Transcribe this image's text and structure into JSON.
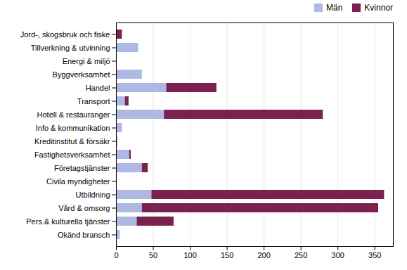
{
  "chart_data": {
    "type": "bar",
    "orientation": "horizontal",
    "stacked": true,
    "categories": [
      "Jord-, skogsbruk och fiske",
      "Tillverkning & utvinning",
      "Energi & miljö",
      "Byggverksamhet",
      "Handel",
      "Transport",
      "Hotell & restauranger",
      "Info & kommunikation",
      "Kreditinstitut & försäkr",
      "Fastighetsverksamhet",
      "Företagstjänster",
      "Civila myndigheter",
      "Utbildning",
      "Vård & omsorg",
      "Pers.& kulturella tjänster",
      "Okänd bransch"
    ],
    "series": [
      {
        "name": "Män",
        "color": "#adb9e3",
        "values": [
          0,
          30,
          0,
          35,
          68,
          12,
          65,
          8,
          2,
          18,
          35,
          0,
          48,
          35,
          28,
          5
        ]
      },
      {
        "name": "Kvinnor",
        "color": "#7b2150",
        "values": [
          8,
          0,
          0,
          0,
          68,
          5,
          215,
          0,
          0,
          2,
          8,
          0,
          315,
          320,
          50,
          0
        ]
      }
    ],
    "xlim": [
      0,
      375
    ],
    "xticks": [
      0,
      50,
      100,
      150,
      200,
      250,
      300,
      350
    ],
    "grid": true,
    "legend": "upper right"
  }
}
